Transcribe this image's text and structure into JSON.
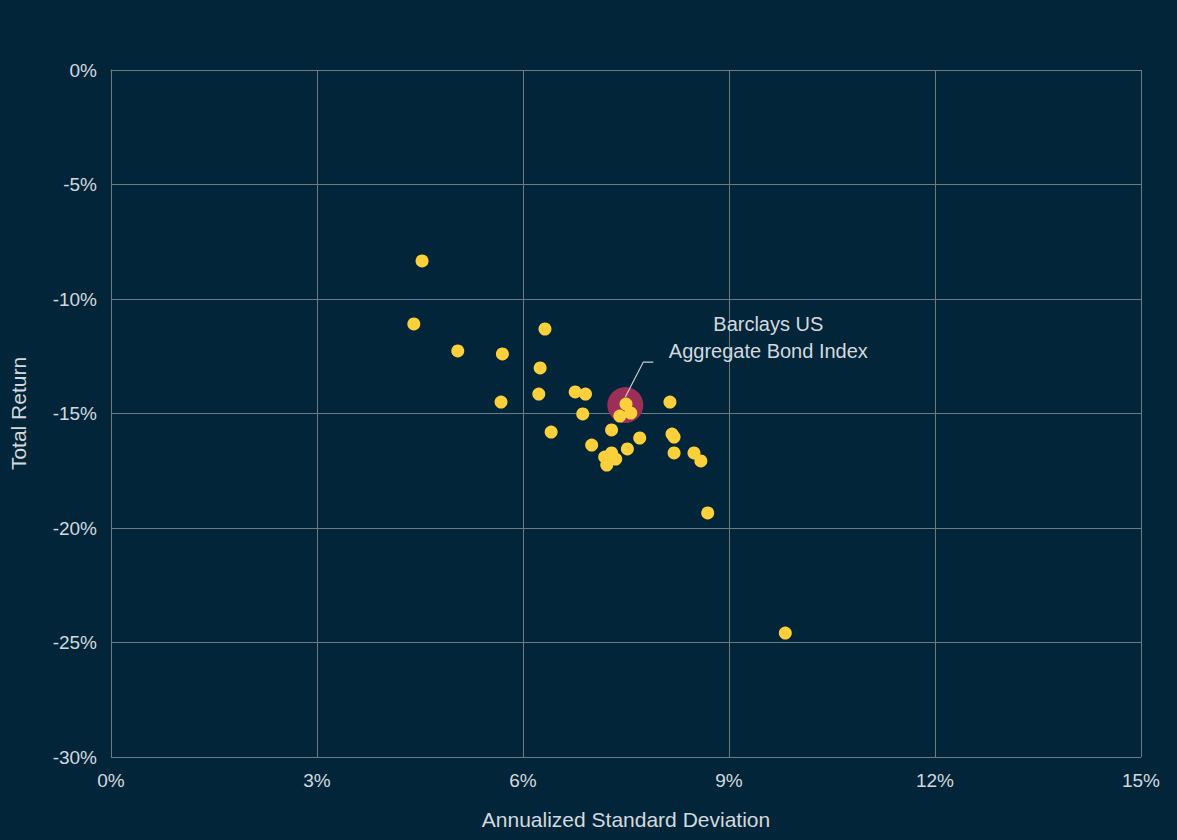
{
  "chart_data": {
    "type": "scatter",
    "x_label": "Annualized Standard Deviation",
    "y_label": "Total Return",
    "xlim": [
      0,
      15
    ],
    "xticks": [
      {
        "value": 0,
        "label": "0%"
      },
      {
        "value": 3,
        "label": "3%"
      },
      {
        "value": 6,
        "label": "6%"
      },
      {
        "value": 9,
        "label": "9%"
      },
      {
        "value": 12,
        "label": "12%"
      },
      {
        "value": 15,
        "label": "15%"
      }
    ],
    "ylim": [
      -30,
      0
    ],
    "yticks": [
      {
        "value": -30,
        "label": "-30%"
      },
      {
        "value": -25,
        "label": "-25%"
      },
      {
        "value": -20,
        "label": "-20%"
      },
      {
        "value": -15,
        "label": "-15%"
      },
      {
        "value": -10,
        "label": "-10%"
      },
      {
        "value": -5,
        "label": "-5%"
      },
      {
        "value": 0,
        "label": "0%"
      }
    ],
    "grid": true,
    "series": [
      {
        "color": "#9b2f57",
        "marker": "circle",
        "x": [
          7.49
        ],
        "values": [
          -14.63
        ]
      },
      {
        "color": "#fcd03b",
        "marker": "circle",
        "x": [
          4.53,
          4.41,
          5.05,
          5.7,
          6.32,
          6.25,
          6.23,
          5.68,
          6.76,
          6.91,
          6.87,
          6.41,
          7.0,
          7.29,
          7.19,
          7.22,
          7.29,
          7.35,
          7.41,
          7.5,
          7.57,
          7.52,
          7.7,
          8.14,
          8.17,
          8.2,
          8.2,
          8.49,
          8.59,
          8.69,
          9.82
        ],
        "values": [
          -8.34,
          -11.09,
          -12.27,
          -12.4,
          -11.31,
          -13.01,
          -14.15,
          -14.5,
          -14.06,
          -14.15,
          -15.02,
          -15.81,
          -16.38,
          -15.72,
          -16.9,
          -17.25,
          -16.72,
          -16.99,
          -15.11,
          -14.59,
          -14.98,
          -16.55,
          -16.07,
          -14.5,
          -15.9,
          -16.03,
          -16.72,
          -16.72,
          -17.07,
          -19.34,
          -24.59
        ]
      }
    ],
    "annotations": [
      {
        "text": [
          "Barclays US",
          "Aggregate Bond Index"
        ],
        "x": 7.49,
        "y": -14.63
      }
    ]
  }
}
